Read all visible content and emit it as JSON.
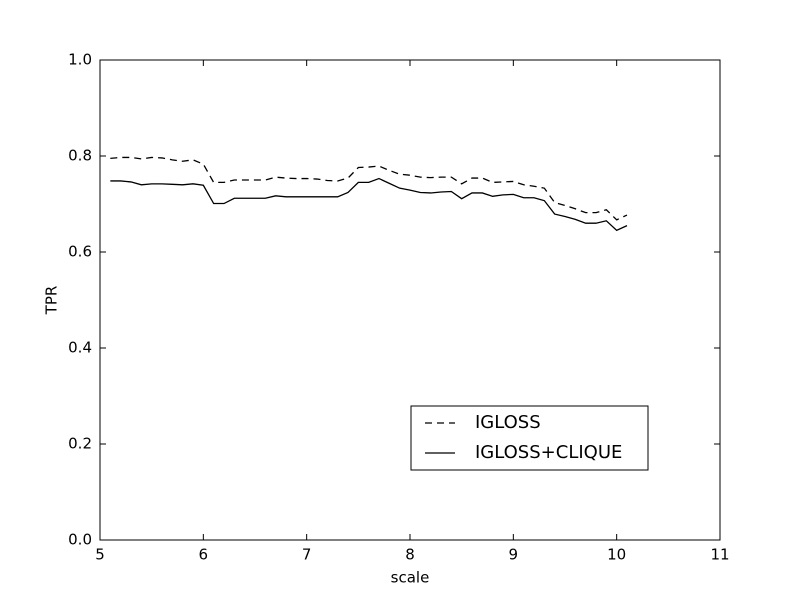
{
  "chart_data": {
    "type": "line",
    "x_label": "scale",
    "y_label": "TPR",
    "x": [
      5.1,
      5.2,
      5.3,
      5.4,
      5.5,
      5.6,
      5.7,
      5.8,
      5.9,
      6.0,
      6.1,
      6.2,
      6.3,
      6.4,
      6.5,
      6.6,
      6.7,
      6.8,
      6.9,
      7.0,
      7.1,
      7.2,
      7.3,
      7.4,
      7.5,
      7.6,
      7.7,
      7.8,
      7.9,
      8.0,
      8.1,
      8.2,
      8.3,
      8.4,
      8.5,
      8.6,
      8.7,
      8.8,
      8.9,
      9.0,
      9.1,
      9.2,
      9.3,
      9.4,
      9.5,
      9.6,
      9.7,
      9.8,
      9.9,
      10.0,
      10.1
    ],
    "series": [
      {
        "name": "IGLOSS",
        "color": "#000000",
        "linestyle": "dashed",
        "values": [
          0.795,
          0.797,
          0.797,
          0.794,
          0.797,
          0.796,
          0.792,
          0.789,
          0.792,
          0.783,
          0.745,
          0.745,
          0.75,
          0.75,
          0.75,
          0.75,
          0.756,
          0.754,
          0.753,
          0.753,
          0.752,
          0.749,
          0.748,
          0.754,
          0.776,
          0.777,
          0.779,
          0.77,
          0.762,
          0.76,
          0.756,
          0.755,
          0.756,
          0.756,
          0.742,
          0.754,
          0.754,
          0.745,
          0.746,
          0.747,
          0.74,
          0.737,
          0.733,
          0.703,
          0.697,
          0.69,
          0.682,
          0.682,
          0.688,
          0.667,
          0.677
        ]
      },
      {
        "name": "IGLOSS+CLIQUE",
        "color": "#000000",
        "linestyle": "solid",
        "values": [
          0.748,
          0.748,
          0.746,
          0.74,
          0.742,
          0.742,
          0.741,
          0.74,
          0.742,
          0.739,
          0.701,
          0.701,
          0.712,
          0.712,
          0.712,
          0.712,
          0.717,
          0.715,
          0.715,
          0.715,
          0.715,
          0.715,
          0.715,
          0.724,
          0.745,
          0.745,
          0.753,
          0.743,
          0.733,
          0.729,
          0.724,
          0.723,
          0.725,
          0.726,
          0.711,
          0.723,
          0.723,
          0.716,
          0.719,
          0.72,
          0.713,
          0.713,
          0.707,
          0.679,
          0.674,
          0.668,
          0.66,
          0.66,
          0.665,
          0.645,
          0.655
        ]
      }
    ],
    "xlim": [
      5,
      11
    ],
    "xticks": [
      5,
      6,
      7,
      8,
      9,
      10,
      11
    ],
    "ylim": [
      0,
      1
    ],
    "yticks": [
      {
        "value": 0,
        "label": "0.0"
      },
      0.2,
      0.4,
      0.6,
      0.8,
      {
        "value": 1,
        "label": "1.0"
      }
    ],
    "legend": "lower right",
    "grid": false
  }
}
